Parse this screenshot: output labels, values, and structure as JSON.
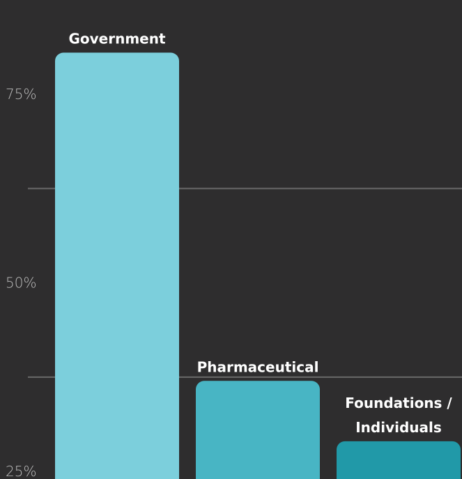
{
  "chart_data": {
    "type": "bar",
    "categories": [
      "Government",
      "Pharmaceutical",
      "Foundations / Individuals"
    ],
    "category_label_lines": [
      [
        "Government"
      ],
      [
        "Pharmaceutical"
      ],
      [
        "Foundations /",
        "Individuals"
      ]
    ],
    "values": [
      80.5,
      37,
      29
    ],
    "bar_colors": [
      "#7ccfdc",
      "#48b5c4",
      "#2199a8"
    ],
    "y_ticks": [
      25,
      50,
      75
    ],
    "y_tick_labels": [
      "25%",
      "50%",
      "75%"
    ],
    "ylim": [
      24,
      86
    ],
    "grid": true,
    "title": "",
    "xlabel": "",
    "ylabel": ""
  }
}
